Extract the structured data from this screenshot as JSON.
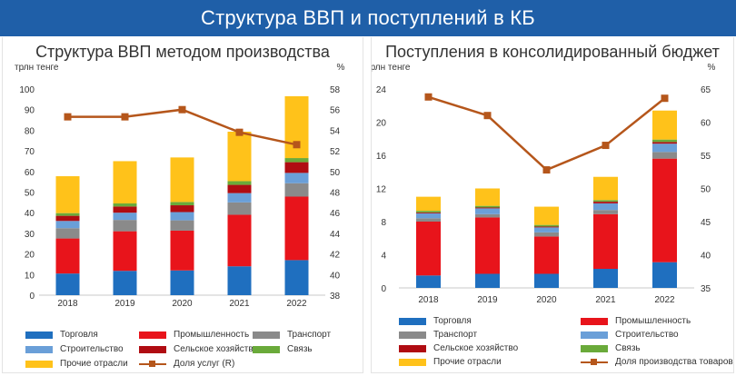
{
  "banner": {
    "title": "Структура ВВП и поступлений в КБ"
  },
  "colors": {
    "trade": "#1f6fbf",
    "industry": "#e8141b",
    "transport": "#8a8a8a",
    "construction": "#6a9fd8",
    "agriculture": "#b00c12",
    "communication": "#6aaa3a",
    "other": "#ffc21a",
    "line": "#b5561b"
  },
  "chart_data": [
    {
      "type": "bar",
      "stacked": true,
      "title": "Структура ВВП методом производства",
      "ylabel": "трлн тенге",
      "y2label": "%",
      "ylim": [
        0,
        100
      ],
      "yticks": [
        0,
        10,
        20,
        30,
        40,
        50,
        60,
        70,
        80,
        90,
        100
      ],
      "y2lim": [
        38,
        58
      ],
      "y2ticks": [
        38,
        40,
        42,
        44,
        46,
        48,
        50,
        52,
        54,
        56,
        58
      ],
      "categories": [
        "2018",
        "2019",
        "2020",
        "2021",
        "2022"
      ],
      "series": [
        {
          "name": "Торговля",
          "color_key": "trade",
          "values": [
            10.5,
            11.8,
            12.0,
            14.0,
            17.0
          ]
        },
        {
          "name": "Промышленность",
          "color_key": "industry",
          "values": [
            17.0,
            19.2,
            19.3,
            25.0,
            30.8
          ]
        },
        {
          "name": "Транспорт",
          "color_key": "transport",
          "values": [
            5.0,
            5.5,
            5.0,
            6.0,
            6.5
          ]
        },
        {
          "name": "Строительство",
          "color_key": "construction",
          "values": [
            3.5,
            3.5,
            4.0,
            4.5,
            5.0
          ]
        },
        {
          "name": "Сельское хозяйство",
          "color_key": "agriculture",
          "values": [
            2.5,
            3.0,
            3.3,
            4.0,
            5.2
          ]
        },
        {
          "name": "Связь",
          "color_key": "communication",
          "values": [
            1.3,
            1.5,
            1.6,
            1.8,
            2.0
          ]
        },
        {
          "name": "Прочие отрасли",
          "color_key": "other",
          "values": [
            17.9,
            20.5,
            21.6,
            24.0,
            30.0
          ]
        }
      ],
      "line": {
        "name": "Доля услуг (R)",
        "color_key": "line",
        "values": [
          55.3,
          55.3,
          56.0,
          53.8,
          52.6
        ]
      },
      "legend_position": "bottom"
    },
    {
      "type": "bar",
      "stacked": true,
      "title": "Поступления в консолидированный бюджет",
      "ylabel": "трлн тенге",
      "y2label": "%",
      "ylim": [
        0,
        24
      ],
      "yticks": [
        0,
        4,
        8,
        12,
        16,
        20,
        24
      ],
      "y2lim": [
        35,
        65
      ],
      "y2ticks": [
        35,
        40,
        45,
        50,
        55,
        60,
        65
      ],
      "categories": [
        "2018",
        "2019",
        "2020",
        "2021",
        "2022"
      ],
      "series": [
        {
          "name": "Торговля",
          "color_key": "trade",
          "values": [
            1.5,
            1.7,
            1.7,
            2.3,
            3.1
          ]
        },
        {
          "name": "Промышленность",
          "color_key": "industry",
          "values": [
            6.5,
            6.8,
            4.5,
            6.6,
            12.5
          ]
        },
        {
          "name": "Транспорт",
          "color_key": "transport",
          "values": [
            0.4,
            0.4,
            0.5,
            0.5,
            0.8
          ]
        },
        {
          "name": "Строительство",
          "color_key": "construction",
          "values": [
            0.6,
            0.7,
            0.6,
            0.8,
            1.0
          ]
        },
        {
          "name": "Сельское хозяйство",
          "color_key": "agriculture",
          "values": [
            0.1,
            0.1,
            0.1,
            0.2,
            0.2
          ]
        },
        {
          "name": "Связь",
          "color_key": "communication",
          "values": [
            0.2,
            0.2,
            0.2,
            0.2,
            0.3
          ]
        },
        {
          "name": "Прочие отрасли",
          "color_key": "other",
          "values": [
            1.7,
            2.1,
            2.2,
            2.8,
            3.5
          ]
        }
      ],
      "line": {
        "name": "Доля производства товаров (R)",
        "color_key": "line",
        "values": [
          63.8,
          61.0,
          52.8,
          56.5,
          63.6
        ]
      },
      "legend_position": "bottom"
    }
  ]
}
